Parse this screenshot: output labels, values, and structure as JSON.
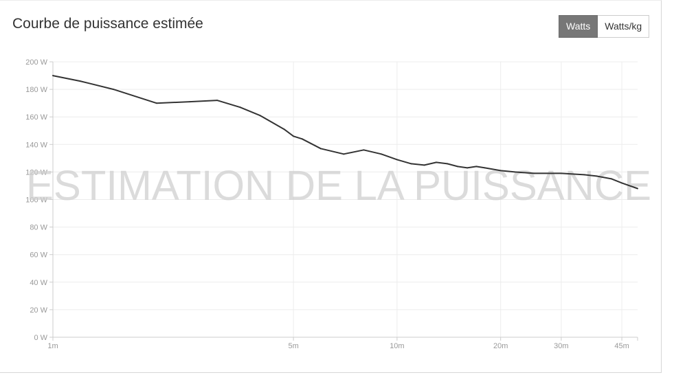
{
  "header": {
    "title": "Courbe de puissance estimée",
    "units": [
      {
        "label": "Watts",
        "active": true
      },
      {
        "label": "Watts/kg",
        "active": false
      }
    ]
  },
  "watermark": "ESTIMATION DE LA PUISSANCE",
  "chart_data": {
    "type": "line",
    "title": "Courbe de puissance estimée",
    "xscale": "log",
    "x_unit": "minutes",
    "xlim": [
      1,
      50
    ],
    "ylim": [
      0,
      200
    ],
    "grid": true,
    "legend": "none",
    "color": "#333333",
    "x_ticks": [
      {
        "value": 1,
        "label": "1m"
      },
      {
        "value": 5,
        "label": "5m"
      },
      {
        "value": 10,
        "label": "10m"
      },
      {
        "value": 20,
        "label": "20m"
      },
      {
        "value": 30,
        "label": "30m"
      },
      {
        "value": 45,
        "label": "45m"
      }
    ],
    "y_ticks": [
      {
        "value": 0,
        "label": "0 W"
      },
      {
        "value": 20,
        "label": "20 W"
      },
      {
        "value": 40,
        "label": "40 W"
      },
      {
        "value": 60,
        "label": "60 W"
      },
      {
        "value": 80,
        "label": "80 W"
      },
      {
        "value": 100,
        "label": "100 W"
      },
      {
        "value": 120,
        "label": "120 W"
      },
      {
        "value": 140,
        "label": "140 W"
      },
      {
        "value": 160,
        "label": "160 W"
      },
      {
        "value": 180,
        "label": "180 W"
      },
      {
        "value": 200,
        "label": "200 W"
      }
    ],
    "series": [
      {
        "x": [
          1,
          1.2,
          1.5,
          2,
          2.5,
          3,
          3.5,
          4,
          4.7,
          5,
          5.3,
          6,
          7,
          8,
          9,
          10,
          11,
          12,
          13,
          14,
          15,
          16,
          17,
          18,
          20,
          22,
          25,
          30,
          35,
          38,
          42,
          45,
          50
        ],
        "y": [
          190,
          186,
          180,
          170,
          171,
          172,
          167,
          161,
          151,
          146,
          144,
          137,
          133,
          136,
          133,
          129,
          126,
          125,
          127,
          126,
          124,
          123,
          124,
          123,
          121,
          120,
          119,
          119,
          118,
          117,
          115,
          112,
          108
        ]
      }
    ]
  }
}
